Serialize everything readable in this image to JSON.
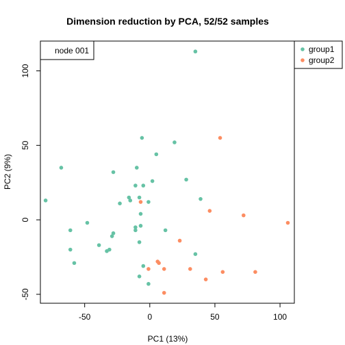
{
  "chart_data": {
    "type": "scatter",
    "title": "Dimension reduction by PCA, 52/52 samples",
    "xlabel": "PC1 (13%)",
    "ylabel": "PC2 (9%)",
    "xlim": [
      -84,
      111
    ],
    "ylim": [
      -56,
      120
    ],
    "xticks": [
      -50,
      0,
      50,
      100
    ],
    "yticks": [
      -50,
      0,
      50,
      100
    ],
    "legend": "right-outside-top",
    "annotation": "node 001",
    "series": [
      {
        "name": "group1",
        "color": "#66C2A5",
        "points": [
          [
            35,
            113
          ],
          [
            -6,
            55
          ],
          [
            19,
            52
          ],
          [
            5,
            44
          ],
          [
            -68,
            35
          ],
          [
            -10,
            35
          ],
          [
            -28,
            32
          ],
          [
            28,
            27
          ],
          [
            2,
            26
          ],
          [
            -5,
            23
          ],
          [
            -11,
            23
          ],
          [
            -16,
            15
          ],
          [
            -15,
            13
          ],
          [
            39,
            14
          ],
          [
            -8,
            15
          ],
          [
            -80,
            13
          ],
          [
            -23,
            11
          ],
          [
            -1,
            12
          ],
          [
            -7,
            4
          ],
          [
            -48,
            -2
          ],
          [
            -7,
            -4
          ],
          [
            -11,
            -5
          ],
          [
            -11,
            -7
          ],
          [
            -28,
            -9
          ],
          [
            -29,
            -11
          ],
          [
            -61,
            -7
          ],
          [
            12,
            -7
          ],
          [
            -8,
            -15
          ],
          [
            -39,
            -17
          ],
          [
            -31,
            -20
          ],
          [
            -61,
            -20
          ],
          [
            -33,
            -21
          ],
          [
            35,
            -23
          ],
          [
            -58,
            -29
          ],
          [
            -5,
            -31
          ],
          [
            -8,
            -38
          ],
          [
            -1,
            -43
          ]
        ]
      },
      {
        "name": "group2",
        "color": "#FC8D62",
        "points": [
          [
            54,
            55
          ],
          [
            -7,
            12
          ],
          [
            46,
            6
          ],
          [
            72,
            3
          ],
          [
            106,
            -2
          ],
          [
            23,
            -14
          ],
          [
            6,
            -28
          ],
          [
            7,
            -29
          ],
          [
            -1,
            -33
          ],
          [
            11,
            -33
          ],
          [
            31,
            -33
          ],
          [
            56,
            -35
          ],
          [
            81,
            -35
          ],
          [
            43,
            -40
          ],
          [
            11,
            -49
          ]
        ]
      }
    ]
  }
}
